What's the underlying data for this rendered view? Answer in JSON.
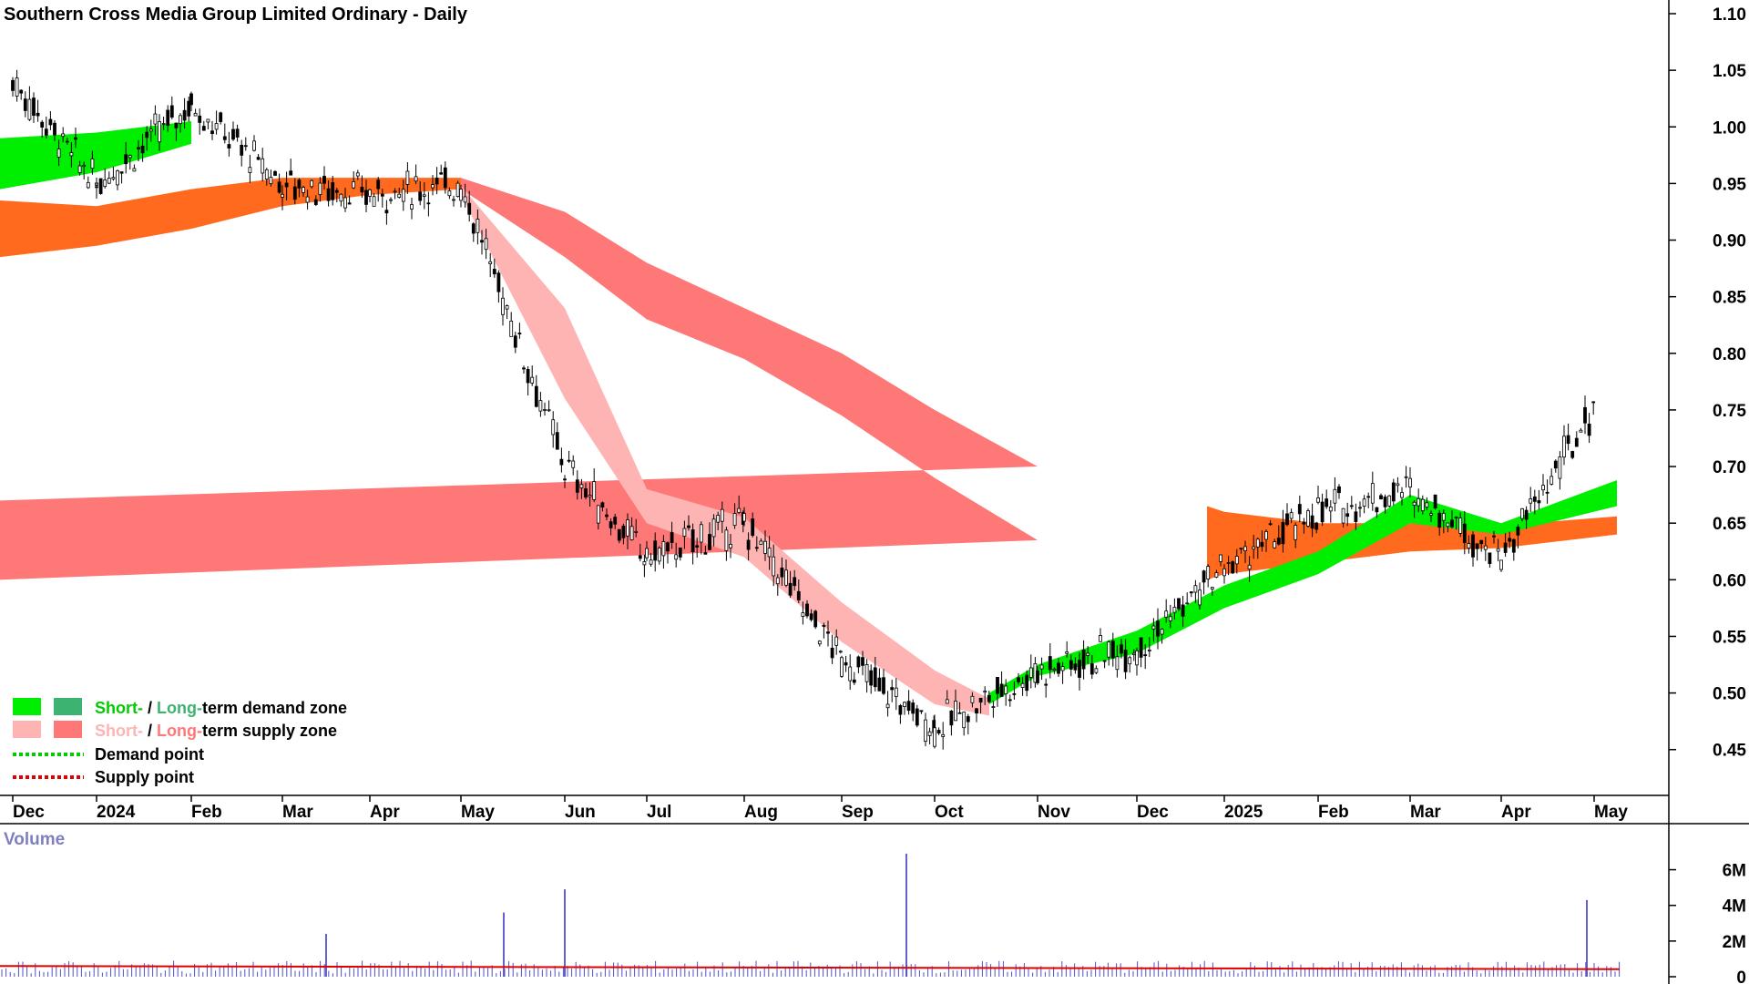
{
  "chart_data": [
    {
      "type": "candlestick",
      "title": "Southern Cross Media Group Limited Ordinary - Daily",
      "ylim": [
        0.42,
        1.1
      ],
      "y_ticks": [
        "1.10",
        "1.05",
        "1.00",
        "0.95",
        "0.90",
        "0.85",
        "0.80",
        "0.75",
        "0.70",
        "0.65",
        "0.60",
        "0.55",
        "0.50",
        "0.45"
      ],
      "x_ticks": [
        "Dec",
        "2024",
        "Feb",
        "Mar",
        "Apr",
        "May",
        "Jun",
        "Jul",
        "Aug",
        "Sep",
        "Oct",
        "Nov",
        "Dec",
        "2025",
        "Feb",
        "Mar",
        "Apr",
        "May"
      ],
      "grid": false,
      "legend_position": "bottom-left",
      "price_path": [
        [
          "Dec",
          1.04
        ],
        [
          "2024",
          0.95
        ],
        [
          "Feb",
          1.02
        ],
        [
          "Mar",
          0.95
        ],
        [
          "Apr",
          0.94
        ],
        [
          "May",
          0.95
        ],
        [
          "Jun",
          0.7
        ],
        [
          "Jul",
          0.62
        ],
        [
          "Aug",
          0.65
        ],
        [
          "Sep",
          0.53
        ],
        [
          "Oct",
          0.47
        ],
        [
          "Nov",
          0.52
        ],
        [
          "Dec",
          0.54
        ],
        [
          "2025",
          0.61
        ],
        [
          "Feb",
          0.66
        ],
        [
          "Mar",
          0.68
        ],
        [
          "Apr",
          0.62
        ],
        [
          "May",
          0.75
        ]
      ],
      "bands": [
        {
          "name": "Long-term supply zone",
          "color": "#ff7878",
          "points": [
            [
              "May",
              0.955,
              0.945
            ],
            [
              "Jun",
              0.925,
              0.885
            ],
            [
              "Jul",
              0.88,
              0.83
            ],
            [
              "Aug",
              0.84,
              0.795
            ],
            [
              "Sep",
              0.8,
              0.745
            ],
            [
              "Oct",
              0.75,
              0.69
            ],
            [
              "Nov",
              0.7,
              0.635
            ],
            [
              "Dec",
              0.67,
              0.6
            ]
          ]
        },
        {
          "name": "Short-term supply zone",
          "color": "#ffb4b4",
          "points": [
            [
              "May",
              0.948,
              0.94
            ],
            [
              "Jun",
              0.84,
              0.76
            ],
            [
              "Jul",
              0.68,
              0.65
            ],
            [
              "Aug",
              0.655,
              0.62
            ],
            [
              "Sep",
              0.58,
              0.545
            ],
            [
              "Oct",
              0.52,
              0.49
            ],
            [
              "Oct+",
              0.495,
              0.48
            ]
          ]
        },
        {
          "name": "Long-term demand/supply transition",
          "color": "#ff6a1e",
          "points": [
            [
              "Dec",
              0.935,
              0.885
            ],
            [
              "2024",
              0.93,
              0.895
            ],
            [
              "Feb",
              0.945,
              0.91
            ],
            [
              "Mar",
              0.955,
              0.93
            ],
            [
              "Apr",
              0.955,
              0.94
            ],
            [
              "May",
              0.955,
              0.945
            ]
          ]
        },
        {
          "name": "Late orange zone",
          "color": "#ff6a1e",
          "points": [
            [
              "Dec+",
              0.665,
              0.6
            ],
            [
              "2025",
              0.66,
              0.605
            ],
            [
              "Feb",
              0.65,
              0.615
            ],
            [
              "Mar",
              0.65,
              0.625
            ],
            [
              "Apr",
              0.648,
              0.628
            ],
            [
              "May",
              0.656,
              0.64
            ]
          ]
        },
        {
          "name": "Short-term demand zone",
          "color": "#00ee00",
          "points": [
            [
              "Oct+",
              0.5,
              0.49
            ],
            [
              "Nov",
              0.525,
              0.515
            ],
            [
              "Dec",
              0.555,
              0.535
            ],
            [
              "2025",
              0.595,
              0.575
            ],
            [
              "Feb",
              0.625,
              0.605
            ],
            [
              "Mar",
              0.675,
              0.65
            ],
            [
              "Apr",
              0.65,
              0.64
            ],
            [
              "May",
              0.688,
              0.665
            ]
          ]
        },
        {
          "name": "Early demand zone",
          "color": "#00ee00",
          "points": [
            [
              "Dec",
              0.99,
              0.945
            ],
            [
              "2024",
              0.995,
              0.96
            ],
            [
              "Feb",
              1.005,
              0.985
            ]
          ]
        }
      ]
    },
    {
      "type": "bar",
      "title": "Volume",
      "ylim": [
        0,
        7000000
      ],
      "y_ticks": [
        "6M",
        "4M",
        "2M",
        "0"
      ],
      "spikes": [
        {
          "x": "Mar",
          "value": 2400000
        },
        {
          "x": "May",
          "value": 3600000
        },
        {
          "x": "Jun",
          "value": 4900000
        },
        {
          "x": "Oct",
          "value": 6900000
        },
        {
          "x": "May",
          "value": 4300000
        }
      ],
      "baseline_avg": 600000
    }
  ],
  "legend": {
    "row1": {
      "short": "Short-",
      "sep": " / ",
      "long": "Long-",
      "rest": "term demand zone"
    },
    "row2": {
      "short": "Short-",
      "sep": " / ",
      "long": "Long-",
      "rest": "term supply zone"
    },
    "row3": {
      "label": "Demand point"
    },
    "row4": {
      "label": "Supply point"
    }
  },
  "colors": {
    "short_demand": "#00ee00",
    "long_demand": "#3cb371",
    "short_supply": "#ffb4b4",
    "long_supply": "#ff7878",
    "orange_zone": "#ff6a1e",
    "demand_point": "#00cc00",
    "supply_point": "#e00000",
    "volume_bar": "#5050c8",
    "volume_avg": "#e00000",
    "candle": "#000000"
  }
}
